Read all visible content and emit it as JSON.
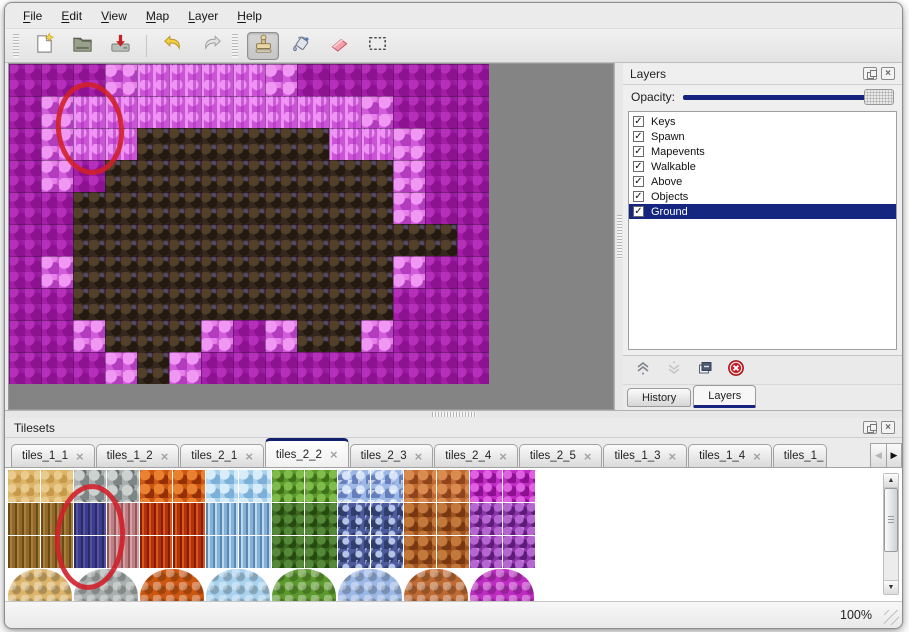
{
  "window": {
    "background": "#ebebeb",
    "accent_navy": "#14267f",
    "annotation_red": "#d2202a"
  },
  "menu_bar": {
    "items": [
      {
        "label": "File"
      },
      {
        "label": "Edit"
      },
      {
        "label": "View"
      },
      {
        "label": "Map"
      },
      {
        "label": "Layer"
      },
      {
        "label": "Help"
      }
    ]
  },
  "toolbar": {
    "tools": [
      {
        "name": "new-file",
        "group": 1
      },
      {
        "name": "open-file",
        "group": 1
      },
      {
        "name": "save-file",
        "group": 1
      },
      {
        "name": "undo",
        "group": 2
      },
      {
        "name": "redo",
        "group": 2
      },
      {
        "name": "stamp-tool",
        "group": 3,
        "active": true
      },
      {
        "name": "fill-tool",
        "group": 3
      },
      {
        "name": "eraser-tool",
        "group": 3
      },
      {
        "name": "rect-select-tool",
        "group": 3
      }
    ]
  },
  "map_view": {
    "columns": 15,
    "rows": 10,
    "tile_size": 32,
    "tile_legend": {
      "P": "dark-magenta-scales",
      "C": "light-pink-pillars",
      "L": "light-pink-rocks",
      "B": "dark-brown-scales"
    },
    "grid": [
      "PPPLCCCCLPPPPPP",
      "PLCCCCCCCCCLPPP",
      "PLCCBBBBBBCCLPP",
      "PLPBBBBBBBBBLPP",
      "PPBBBBBBBBBBLPP",
      "PPBBBBBBBBBBBBP",
      "PLBBBBBBBBBBLPP",
      "PPBBBBBBBBBBPPP",
      "PPLBBBLPLBBLPPP",
      "PPPLBLPPPPPPPPP"
    ],
    "annotation": {
      "shape": "ellipse",
      "color": "#d2202a",
      "note": "red ellipse circling pink pillar tiles at top-left of map"
    }
  },
  "layers_panel": {
    "title": "Layers",
    "opacity_label": "Opacity:",
    "opacity_percent": 100,
    "layers": [
      {
        "name": "Keys",
        "visible": true
      },
      {
        "name": "Spawn",
        "visible": true
      },
      {
        "name": "Mapevents",
        "visible": true
      },
      {
        "name": "Walkable",
        "visible": true
      },
      {
        "name": "Above",
        "visible": true
      },
      {
        "name": "Objects",
        "visible": true
      },
      {
        "name": "Ground",
        "visible": true,
        "selected": true
      }
    ],
    "buttons": [
      {
        "name": "raise-layer"
      },
      {
        "name": "lower-layer",
        "disabled": true
      },
      {
        "name": "duplicate-layer"
      },
      {
        "name": "delete-layer"
      }
    ],
    "dock_tabs": [
      {
        "label": "History"
      },
      {
        "label": "Layers",
        "active": true
      }
    ]
  },
  "tilesets_panel": {
    "title": "Tilesets",
    "tab_close_glyph": "×",
    "tabs": [
      {
        "label": "tiles_1_1"
      },
      {
        "label": "tiles_1_2"
      },
      {
        "label": "tiles_2_1"
      },
      {
        "label": "tiles_2_2",
        "active": true
      },
      {
        "label": "tiles_2_3"
      },
      {
        "label": "tiles_2_4"
      },
      {
        "label": "tiles_2_5"
      },
      {
        "label": "tiles_1_3"
      },
      {
        "label": "tiles_1_4"
      },
      {
        "label": "tiles_1_",
        "clipped": true
      }
    ],
    "palette": {
      "sand": "#dcb56b",
      "stone": "#a9afae",
      "lava": "#cd5711",
      "ice": "#a9d2ee",
      "vine": "#5d9a2d",
      "crystal": "#9cb8e6",
      "rust": "#bf6a33",
      "pink": "#bf2cc4",
      "bark": "#8f692c",
      "navy": "#3c3c8e",
      "mauve": "#bc7f84",
      "fire": "#b3320e",
      "icecol": "#84b1d6",
      "dvine": "#3b6920",
      "spike": "#4c5b9b",
      "drust": "#a0531f",
      "pvine": "#8a34a8"
    },
    "grid_rows": [
      [
        "sand",
        "sand",
        "stone",
        "stone",
        "lava",
        "lava",
        "ice",
        "ice",
        "vine",
        "vine",
        "crystal",
        "crystal",
        "rust",
        "rust",
        "pink",
        "pink"
      ],
      [
        "bark",
        "bark",
        "navy",
        "mauve",
        "fire",
        "fire",
        "icecol",
        "icecol",
        "dvine",
        "dvine",
        "spike",
        "spike",
        "drust",
        "drust",
        "pvine",
        "pvine"
      ],
      [
        "bark",
        "bark",
        "navy",
        "mauve",
        "fire",
        "fire",
        "icecol",
        "icecol",
        "dvine",
        "dvine",
        "spike",
        "spike",
        "drust",
        "drust",
        "pvine",
        "pvine"
      ]
    ],
    "mound_row": [
      "sand",
      "stone",
      "lava",
      "ice",
      "vine",
      "crystal",
      "rust",
      "pink"
    ],
    "annotation": {
      "shape": "ellipse",
      "color": "#d2202a",
      "note": "red ellipse circling navy pillar tiles"
    }
  },
  "status_bar": {
    "zoom_level": "100%"
  }
}
